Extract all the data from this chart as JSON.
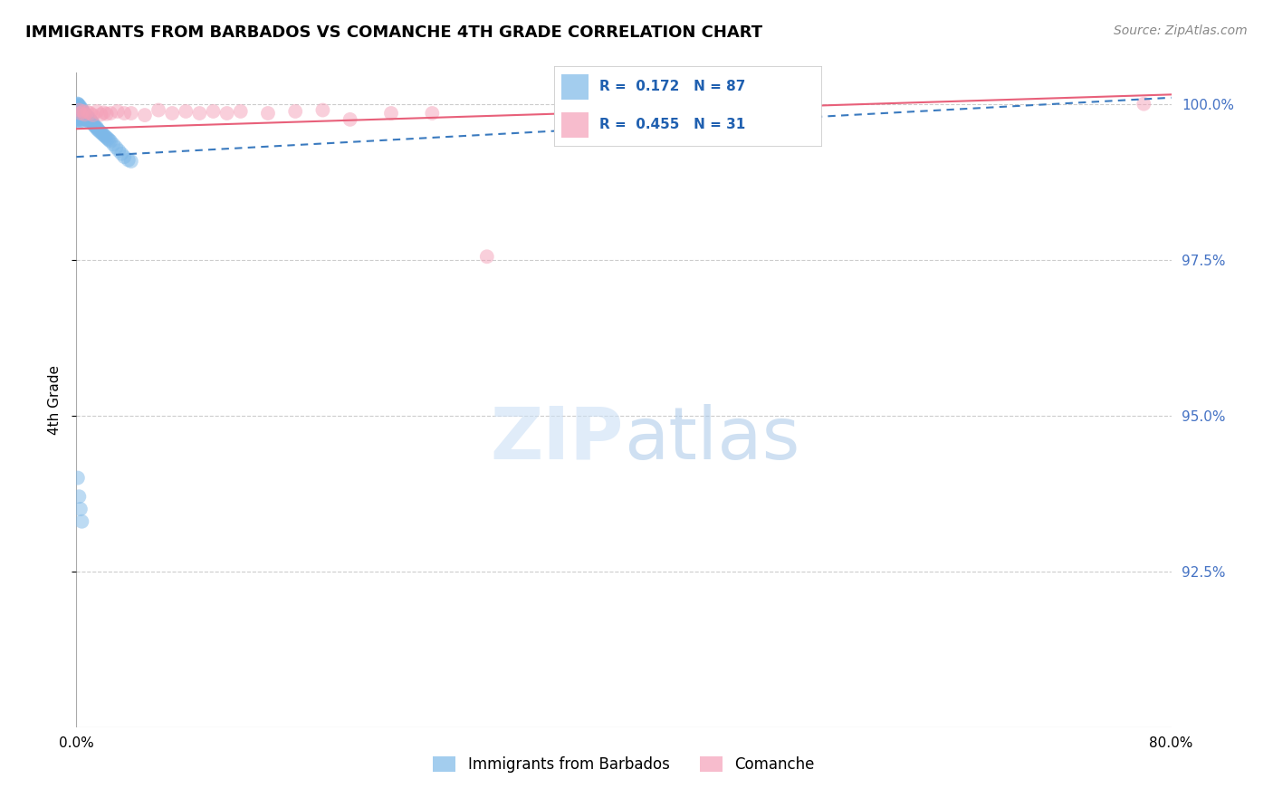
{
  "title": "IMMIGRANTS FROM BARBADOS VS COMANCHE 4TH GRADE CORRELATION CHART",
  "source": "Source: ZipAtlas.com",
  "ylabel": "4th Grade",
  "xlim": [
    0.0,
    0.8
  ],
  "ylim": [
    0.9,
    1.005
  ],
  "xticks": [
    0.0,
    0.1,
    0.2,
    0.3,
    0.4,
    0.5,
    0.6,
    0.7,
    0.8
  ],
  "xticklabels": [
    "0.0%",
    "",
    "",
    "",
    "",
    "",
    "",
    "",
    "80.0%"
  ],
  "yticks": [
    0.925,
    0.95,
    0.975,
    1.0
  ],
  "yticklabels": [
    "92.5%",
    "95.0%",
    "97.5%",
    "100.0%"
  ],
  "blue_color": "#7db8e8",
  "pink_color": "#f4a0b8",
  "blue_line_color": "#3a7abf",
  "pink_line_color": "#e8607a",
  "R_blue": 0.172,
  "N_blue": 87,
  "R_pink": 0.455,
  "N_pink": 31,
  "legend_label_blue": "Immigrants from Barbados",
  "legend_label_pink": "Comanche",
  "blue_scatter_x": [
    0.001,
    0.001,
    0.001,
    0.001,
    0.001,
    0.001,
    0.001,
    0.001,
    0.001,
    0.001,
    0.001,
    0.001,
    0.001,
    0.001,
    0.001,
    0.002,
    0.002,
    0.002,
    0.002,
    0.002,
    0.002,
    0.002,
    0.002,
    0.002,
    0.002,
    0.002,
    0.002,
    0.003,
    0.003,
    0.003,
    0.003,
    0.003,
    0.003,
    0.003,
    0.003,
    0.003,
    0.003,
    0.004,
    0.004,
    0.004,
    0.004,
    0.004,
    0.004,
    0.005,
    0.005,
    0.005,
    0.005,
    0.006,
    0.006,
    0.006,
    0.007,
    0.007,
    0.007,
    0.008,
    0.008,
    0.009,
    0.009,
    0.01,
    0.01,
    0.011,
    0.012,
    0.012,
    0.013,
    0.014,
    0.015,
    0.015,
    0.016,
    0.017,
    0.018,
    0.019,
    0.02,
    0.021,
    0.022,
    0.023,
    0.024,
    0.025,
    0.027,
    0.029,
    0.031,
    0.033,
    0.035,
    0.038,
    0.04,
    0.001,
    0.002,
    0.003,
    0.004
  ],
  "blue_scatter_y": [
    1.0,
    1.0,
    0.9998,
    0.9997,
    0.9996,
    0.9995,
    0.9995,
    0.9993,
    0.999,
    0.9988,
    0.9985,
    0.9982,
    0.998,
    0.9978,
    0.9975,
    0.9998,
    0.9996,
    0.9994,
    0.9992,
    0.999,
    0.9988,
    0.9985,
    0.9983,
    0.998,
    0.9978,
    0.9975,
    0.9972,
    0.9995,
    0.9992,
    0.999,
    0.9988,
    0.9985,
    0.9982,
    0.998,
    0.9978,
    0.9975,
    0.9972,
    0.9992,
    0.999,
    0.9988,
    0.9985,
    0.9982,
    0.998,
    0.9988,
    0.9985,
    0.9982,
    0.9978,
    0.9985,
    0.9982,
    0.9978,
    0.9982,
    0.9978,
    0.9975,
    0.998,
    0.9975,
    0.9978,
    0.9972,
    0.9975,
    0.997,
    0.9972,
    0.997,
    0.9968,
    0.9965,
    0.9963,
    0.9962,
    0.996,
    0.9958,
    0.9956,
    0.9954,
    0.9952,
    0.995,
    0.9948,
    0.9946,
    0.9944,
    0.9942,
    0.994,
    0.9935,
    0.993,
    0.9925,
    0.992,
    0.9915,
    0.991,
    0.9908,
    0.94,
    0.937,
    0.935,
    0.933
  ],
  "pink_scatter_x": [
    0.002,
    0.003,
    0.005,
    0.006,
    0.008,
    0.01,
    0.012,
    0.015,
    0.018,
    0.02,
    0.022,
    0.025,
    0.03,
    0.035,
    0.04,
    0.05,
    0.06,
    0.07,
    0.08,
    0.09,
    0.1,
    0.11,
    0.12,
    0.14,
    0.16,
    0.18,
    0.2,
    0.23,
    0.26,
    0.3,
    0.78
  ],
  "pink_scatter_y": [
    0.999,
    0.9985,
    0.9988,
    0.9983,
    0.9987,
    0.9985,
    0.9982,
    0.9988,
    0.9983,
    0.9986,
    0.9984,
    0.9985,
    0.9988,
    0.9985,
    0.9985,
    0.9982,
    0.999,
    0.9985,
    0.9988,
    0.9985,
    0.9988,
    0.9985,
    0.9988,
    0.9985,
    0.9988,
    0.999,
    0.9975,
    0.9985,
    0.9985,
    0.9755,
    1.0
  ],
  "blue_trend_x": [
    0.0,
    0.8
  ],
  "blue_trend_y": [
    0.9915,
    1.001
  ],
  "pink_trend_x": [
    0.0,
    0.8
  ],
  "pink_trend_y": [
    0.996,
    1.0015
  ]
}
